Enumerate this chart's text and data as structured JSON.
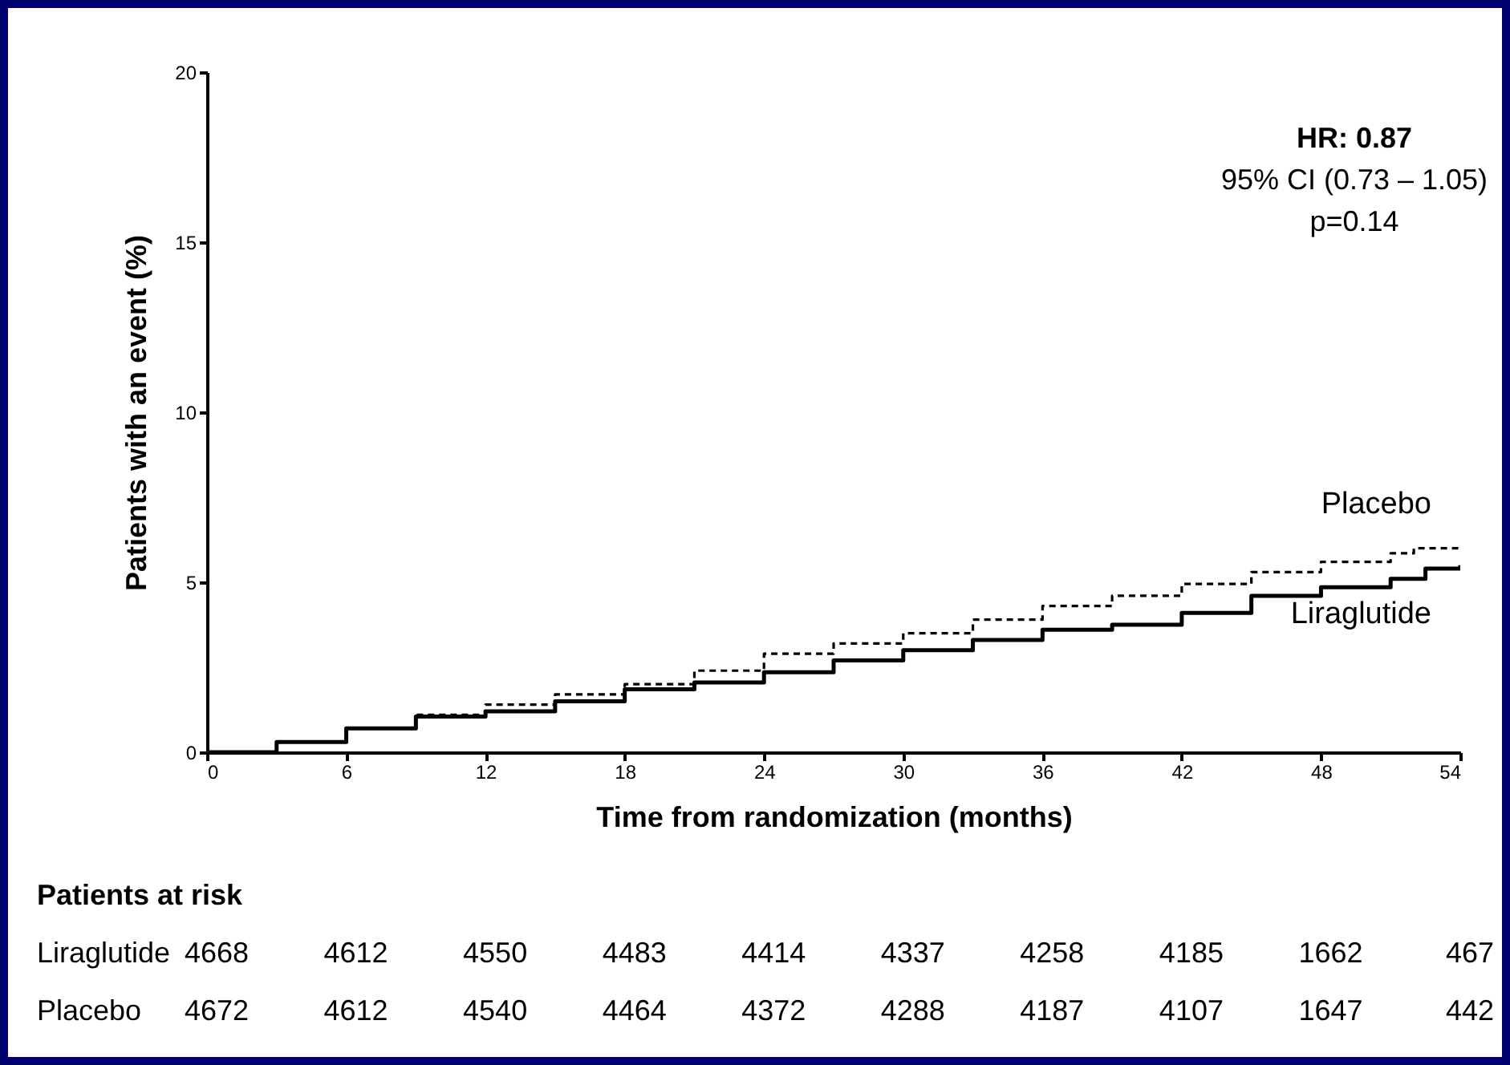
{
  "chart_data": {
    "type": "step",
    "xlabel": "Time from randomization (months)",
    "ylabel": "Patients with an event (%)",
    "xlim": [
      0,
      54
    ],
    "xticks": [
      0,
      6,
      12,
      18,
      24,
      30,
      36,
      42,
      48,
      54
    ],
    "ylim": [
      0,
      20
    ],
    "yticks": [
      0,
      5,
      10,
      15,
      20
    ],
    "grid": false,
    "legend": false,
    "marker": "none",
    "series": [
      {
        "name": "Placebo",
        "color": "#000000",
        "line_style": "dashed",
        "x": [
          0,
          3,
          6,
          9,
          12,
          15,
          18,
          21,
          24,
          27,
          30,
          33,
          36,
          39,
          42,
          45,
          48,
          51,
          52,
          54
        ],
        "values": [
          0,
          0.3,
          0.7,
          1.1,
          1.4,
          1.7,
          2.0,
          2.4,
          2.9,
          3.2,
          3.5,
          3.9,
          4.3,
          4.6,
          4.95,
          5.3,
          5.6,
          5.85,
          6.0,
          6.0
        ]
      },
      {
        "name": "Liraglutide",
        "color": "#000000",
        "line_style": "solid",
        "x": [
          0,
          3,
          6,
          9,
          12,
          15,
          18,
          21,
          24,
          27,
          30,
          33,
          36,
          39,
          42,
          45,
          48,
          51,
          52.5,
          54
        ],
        "values": [
          0,
          0.3,
          0.7,
          1.05,
          1.2,
          1.5,
          1.85,
          2.05,
          2.35,
          2.7,
          3.0,
          3.3,
          3.6,
          3.75,
          4.1,
          4.6,
          4.85,
          5.1,
          5.4,
          5.5
        ]
      }
    ],
    "annotations": [
      "HR: 0.87",
      "95% CI (0.73 – 1.05)",
      "p=0.14",
      "Patients at risk",
      "Liraglutide",
      "4668",
      "4612",
      "4550",
      "4483",
      "4414",
      "4337",
      "4258",
      "4185",
      "1662",
      "467",
      "Placebo",
      "4672",
      "4612",
      "4540",
      "4464",
      "4372",
      "4288",
      "4187",
      "4107",
      "1647",
      "442"
    ]
  }
}
